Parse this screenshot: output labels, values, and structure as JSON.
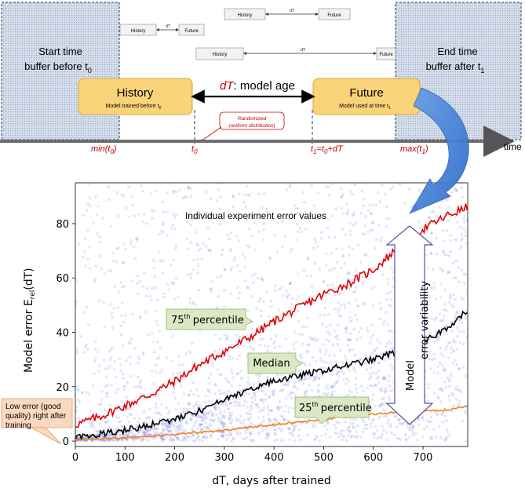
{
  "diagram": {
    "start_buffer": {
      "line1": "Start time",
      "line2": "buffer before t",
      "sub": "0"
    },
    "end_buffer": {
      "line1": "End time",
      "line2": "buffer after t",
      "sub": "1"
    },
    "mini_rows": [
      {
        "history": "History",
        "dt": "dT",
        "future": "Future"
      },
      {
        "history": "History",
        "dt": "dT",
        "future": "Future"
      },
      {
        "history": "History",
        "dt": "dT",
        "future": "Future"
      }
    ],
    "history_box": {
      "title": "History",
      "subtitle": "Model trained before t",
      "sub": "0"
    },
    "future_box": {
      "title": "Future",
      "subtitle": "Model used at time t",
      "sub": "1"
    },
    "model_age": {
      "symbol": "dT",
      "text": ": model age"
    },
    "randomized_note": {
      "line1": "Randomized",
      "line2": "(uniform distribution)"
    },
    "timeline": {
      "axis_label": "time",
      "labels": [
        {
          "base": "min(t",
          "sub": "0",
          "tail": ")"
        },
        {
          "base": "t",
          "sub": "0",
          "tail": ""
        },
        {
          "base": "t",
          "sub": "1",
          "tail": "=t",
          "sub2": "0",
          "tail2": "+dT"
        },
        {
          "base": "max(t",
          "sub": "1",
          "tail": ")"
        }
      ]
    },
    "colors": {
      "buffer_fill": "#cfd9e8",
      "box_fill": "#fbd378",
      "box_stroke": "#d9a43a",
      "red_text": "#c00000",
      "arrow_blue": "#3d7fd9"
    }
  },
  "chart_data": {
    "type": "scatter",
    "title": "",
    "annotation_title": "Individual experiment error values",
    "xlabel": "dT, days after trained",
    "ylabel": {
      "base": "Model error E",
      "sub": "rel",
      "tail": "(dT)"
    },
    "xlim": [
      0,
      790
    ],
    "ylim": [
      -2,
      95
    ],
    "xticks": [
      0,
      100,
      200,
      300,
      400,
      500,
      600,
      700
    ],
    "yticks": [
      0,
      20,
      40,
      60,
      80
    ],
    "grid": false,
    "series": [
      {
        "name": "75th percentile",
        "color": "#e00000",
        "x": [
          0,
          50,
          100,
          150,
          200,
          250,
          300,
          350,
          400,
          450,
          500,
          550,
          600,
          650,
          700,
          750,
          790
        ],
        "y": [
          6,
          9,
          13,
          17,
          22,
          28,
          33,
          38,
          44,
          49,
          54,
          58,
          63,
          71,
          78,
          83,
          86
        ]
      },
      {
        "name": "Median",
        "color": "#000000",
        "x": [
          0,
          50,
          100,
          150,
          200,
          250,
          300,
          350,
          400,
          450,
          500,
          550,
          600,
          650,
          700,
          750,
          790
        ],
        "y": [
          1.5,
          2.5,
          4,
          6,
          8,
          11,
          15,
          19,
          22,
          24,
          26,
          28,
          30,
          33,
          36,
          42,
          48
        ]
      },
      {
        "name": "25th percentile",
        "color": "#f08020",
        "x": [
          0,
          50,
          100,
          150,
          200,
          250,
          300,
          350,
          400,
          450,
          500,
          550,
          600,
          650,
          700,
          750,
          790
        ],
        "y": [
          0.5,
          0.8,
          1.2,
          1.8,
          2.5,
          3.2,
          4,
          5,
          6,
          7,
          8,
          9,
          10,
          10.5,
          11,
          11.5,
          13
        ]
      }
    ],
    "labels": {
      "p75": {
        "sup": "th",
        "num": "75",
        "word": "percentile"
      },
      "median": "Median",
      "p25": {
        "sup": "th",
        "num": "25",
        "word": "percentile"
      },
      "low_error": {
        "line1": "Low error (good",
        "line2": "quality) right after",
        "line3": "training"
      },
      "variability": {
        "line1": "Model",
        "line2": "error variability"
      }
    },
    "scatter_color": "#6a74e0",
    "highlight_point": {
      "x": 685,
      "y": 86,
      "color": "#8a3cd8"
    }
  }
}
